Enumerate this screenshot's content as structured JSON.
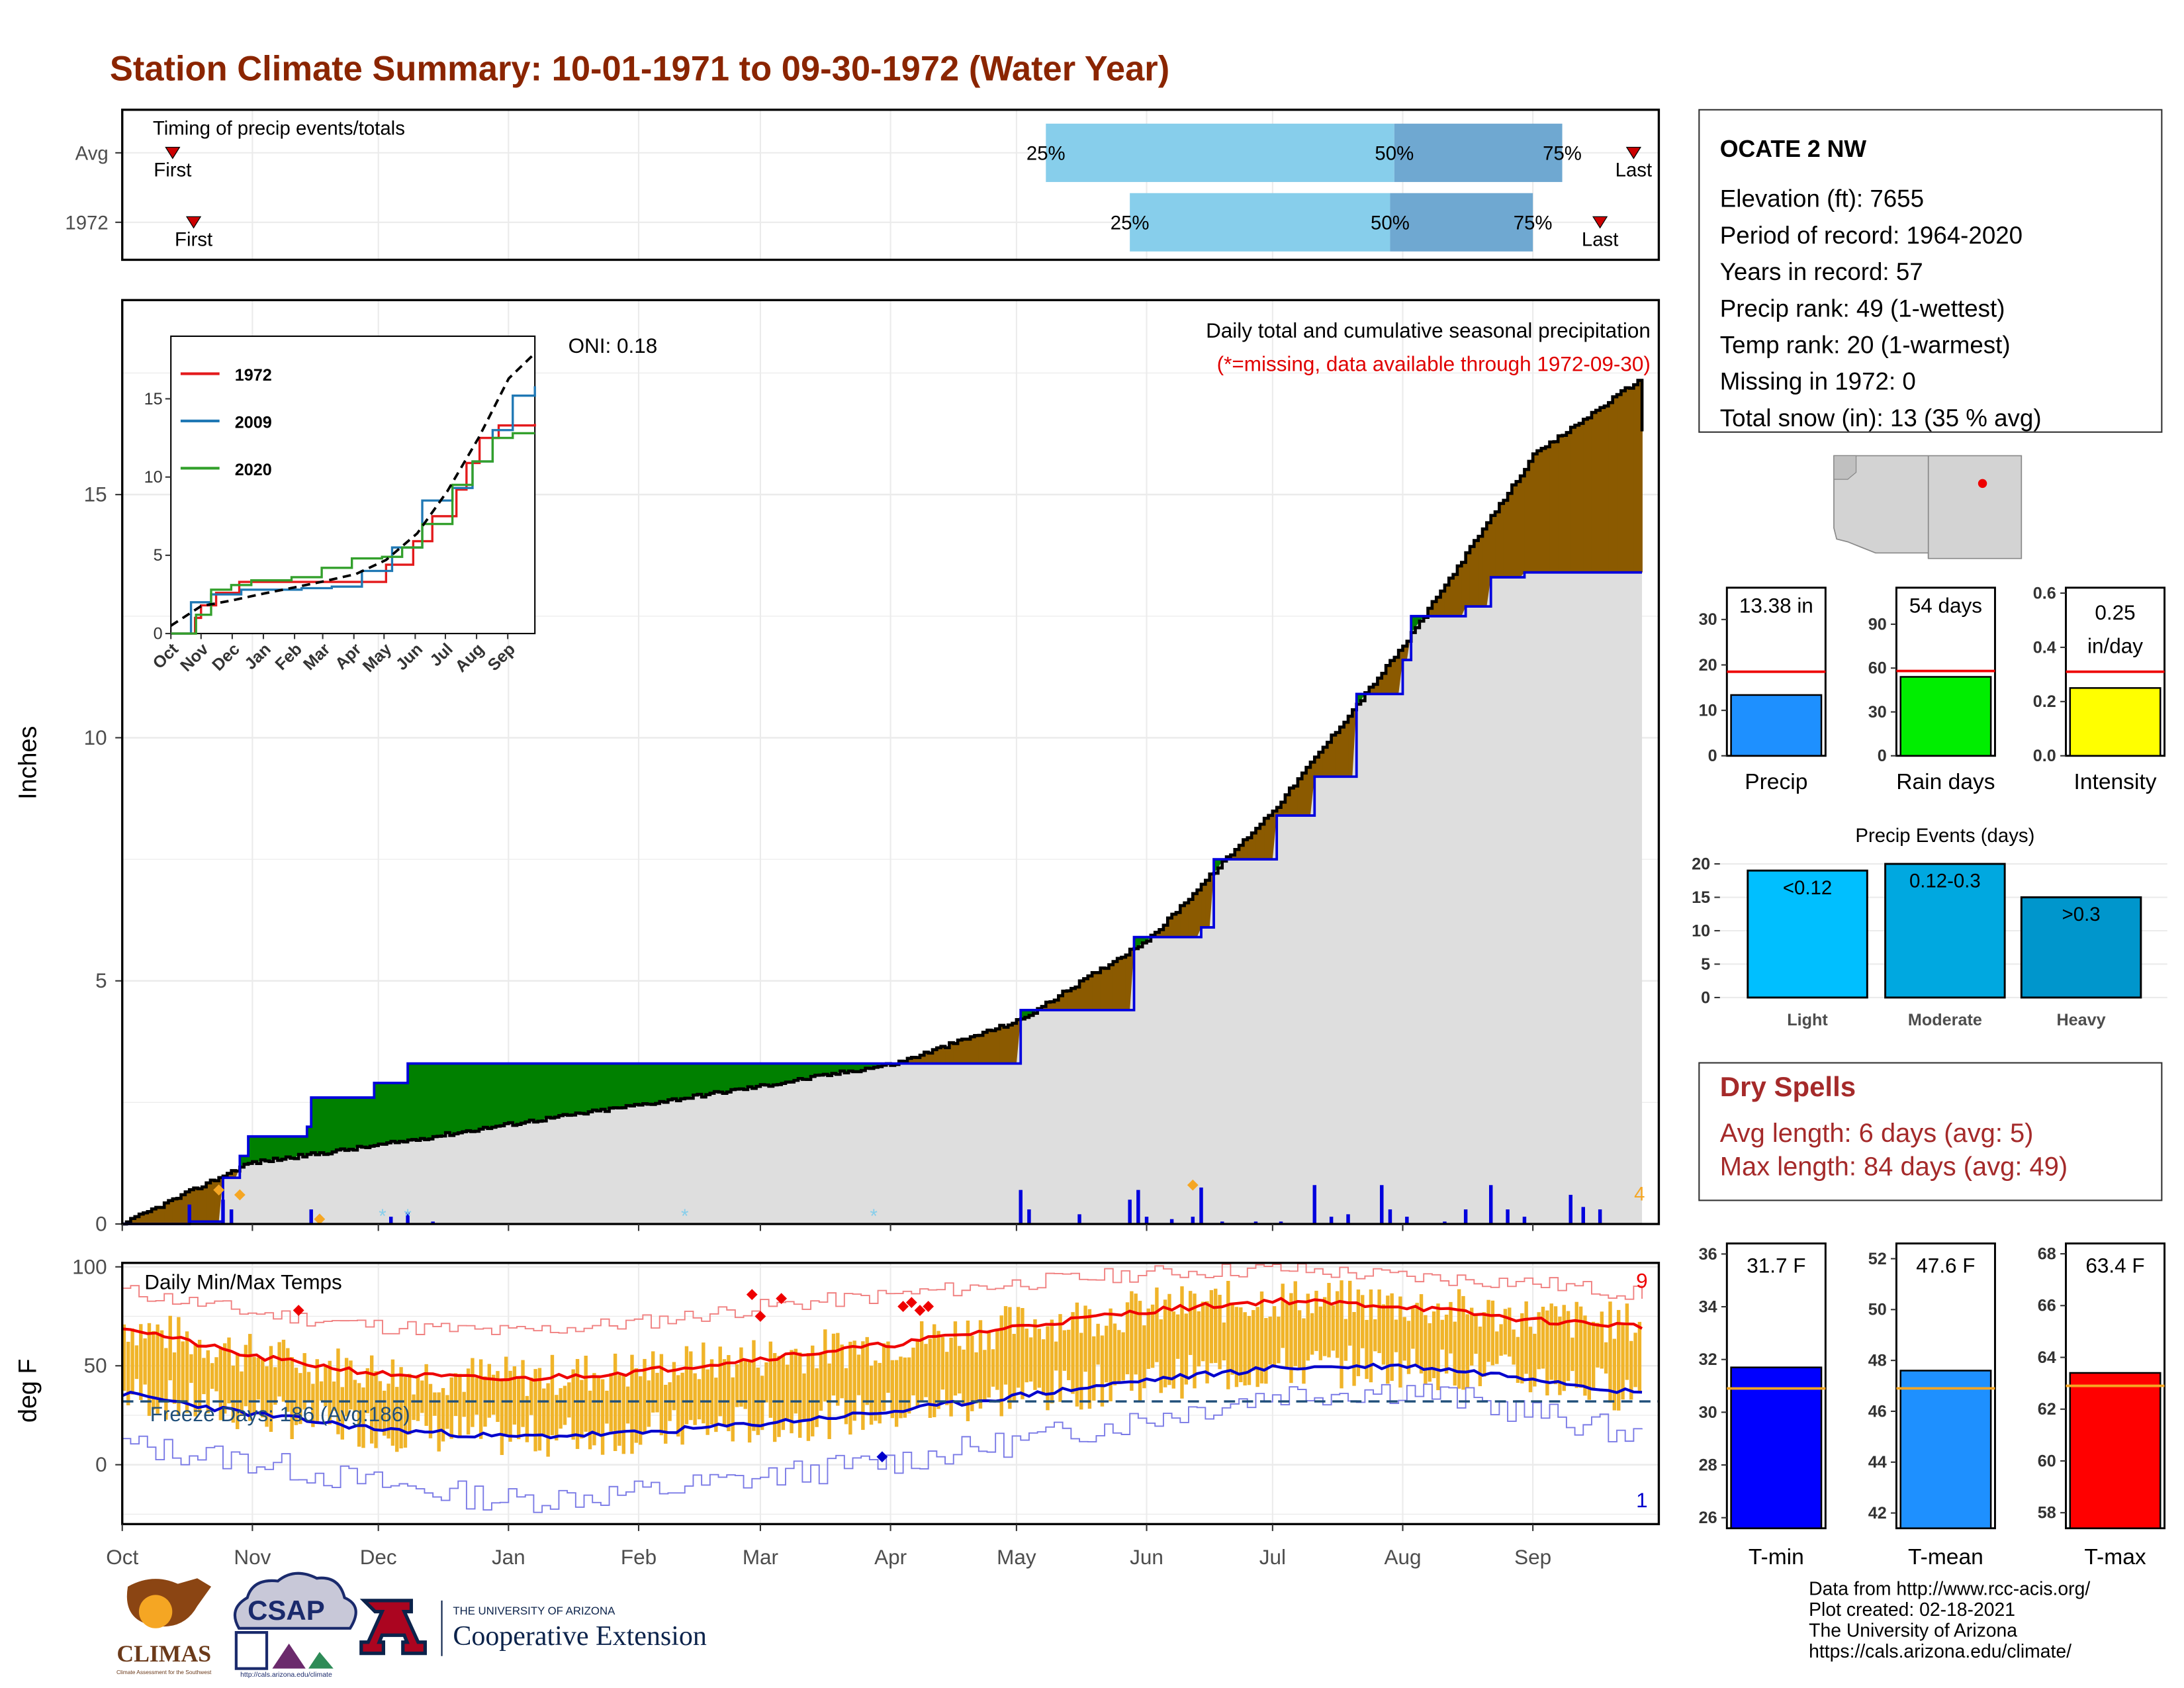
{
  "page": {
    "title": "Station Climate Summary: 10-01-1971 to 09-30-1972 (Water Year)",
    "title_color": "#8B2500",
    "footer_lines": [
      "Data from http://www.rcc-acis.org/",
      "Plot created: 02-18-2021",
      "The University of Arizona",
      "https://cals.arizona.edu/climate/"
    ],
    "logos": {
      "climas": "CLIMAS",
      "climas_sub": "Climate Assessment for the Southwest",
      "csap": "CSAP",
      "csap_url": "http://cals.arizona.edu/climate",
      "ua_line1": "THE UNIVERSITY OF ARIZONA",
      "ua_line2": "Cooperative Extension"
    }
  },
  "months": [
    "Oct",
    "Nov",
    "Dec",
    "Jan",
    "Feb",
    "Mar",
    "Apr",
    "May",
    "Jun",
    "Jul",
    "Aug",
    "Sep"
  ],
  "timing": {
    "title": "Timing of precip events/totals",
    "rows": [
      {
        "label": "Avg",
        "first_label": "First",
        "last_label": "Last",
        "first_day": 12,
        "last_day": 360,
        "p25_day": 220,
        "p50_day": 303,
        "p75_day": 343,
        "p25": "25%",
        "p50": "50%",
        "p75": "75%"
      },
      {
        "label": "1972",
        "first_label": "First",
        "last_label": "Last",
        "first_day": 17,
        "last_day": 352,
        "p25_day": 240,
        "p50_day": 302,
        "p75_day": 336,
        "p25": "25%",
        "p50": "50%",
        "p75": "75%"
      }
    ],
    "colors": {
      "light": "#87CEEB",
      "dark": "#6FA8D1",
      "marker": "#CC0000"
    }
  },
  "station": {
    "name": "OCATE 2 NW",
    "lines": [
      "Elevation (ft): 7655",
      "Period of record: 1964-2020",
      "Years in record: 57",
      "Precip rank: 49 (1-wettest)",
      "Temp rank: 20 (1-warmest)",
      "Missing in 1972: 0",
      "Total snow (in): 13 (35 % avg)"
    ]
  },
  "precip": {
    "ylabel": "Inches",
    "ylim": [
      0,
      19
    ],
    "yticks": [
      0,
      5,
      10,
      15
    ],
    "title": "Daily total and cumulative seasonal precipitation",
    "subtitle": "(*=missing, data available through 1972-09-30)",
    "oni": "ONI: 0.18",
    "snow_count": "4",
    "avg_cumulative": [
      [
        0,
        0
      ],
      [
        30,
        1.25
      ],
      [
        61,
        1.62
      ],
      [
        92,
        2.05
      ],
      [
        123,
        2.45
      ],
      [
        153,
        2.85
      ],
      [
        184,
        3.3
      ],
      [
        214,
        4.2
      ],
      [
        245,
        5.9
      ],
      [
        275,
        8.6
      ],
      [
        306,
        12.0
      ],
      [
        336,
        15.8
      ],
      [
        361,
        17.35
      ],
      [
        362,
        16.3
      ]
    ],
    "year_cumulative": [
      [
        0,
        0
      ],
      [
        16,
        0.05
      ],
      [
        24,
        0.95
      ],
      [
        28,
        1.4
      ],
      [
        30,
        1.8
      ],
      [
        44,
        2.0
      ],
      [
        45,
        2.6
      ],
      [
        60,
        2.9
      ],
      [
        68,
        3.3
      ],
      [
        100,
        3.3
      ],
      [
        120,
        3.3
      ],
      [
        160,
        3.3
      ],
      [
        184,
        3.3
      ],
      [
        213,
        3.3
      ],
      [
        214,
        4.4
      ],
      [
        240,
        4.4
      ],
      [
        241,
        5.9
      ],
      [
        257,
        6.1
      ],
      [
        260,
        7.5
      ],
      [
        275,
        8.4
      ],
      [
        284,
        9.2
      ],
      [
        294,
        10.9
      ],
      [
        305,
        11.6
      ],
      [
        307,
        12.5
      ],
      [
        320,
        12.7
      ],
      [
        326,
        13.3
      ],
      [
        334,
        13.4
      ],
      [
        362,
        13.4
      ]
    ],
    "daily_bars": [
      [
        16,
        0.4
      ],
      [
        24,
        0.5
      ],
      [
        26,
        0.3
      ],
      [
        45,
        0.3
      ],
      [
        64,
        0.15
      ],
      [
        68,
        0.25
      ],
      [
        74,
        0.05
      ],
      [
        214,
        0.7
      ],
      [
        216,
        0.3
      ],
      [
        228,
        0.2
      ],
      [
        240,
        0.5
      ],
      [
        242,
        0.7
      ],
      [
        244,
        0.15
      ],
      [
        250,
        0.1
      ],
      [
        255,
        0.15
      ],
      [
        257,
        0.75
      ],
      [
        262,
        0.05
      ],
      [
        270,
        0.05
      ],
      [
        276,
        0.05
      ],
      [
        284,
        0.8
      ],
      [
        288,
        0.15
      ],
      [
        292,
        0.2
      ],
      [
        300,
        0.8
      ],
      [
        302,
        0.3
      ],
      [
        306,
        0.15
      ],
      [
        315,
        0.05
      ],
      [
        320,
        0.3
      ],
      [
        326,
        0.8
      ],
      [
        330,
        0.3
      ],
      [
        334,
        0.15
      ],
      [
        345,
        0.6
      ],
      [
        348,
        0.35
      ],
      [
        352,
        0.3
      ]
    ],
    "colors": {
      "above": "#8B5A00",
      "below": "#008000",
      "fill": "#DEDEDE",
      "year_line": "#0000DD",
      "avg_line": "#000000"
    }
  },
  "inset": {
    "ylim": [
      0,
      19
    ],
    "yticks": [
      0,
      5,
      10,
      15
    ],
    "series": [
      {
        "name": "1972",
        "color": "#E31A1C",
        "points": [
          [
            0,
            0
          ],
          [
            24,
            1.0
          ],
          [
            30,
            1.8
          ],
          [
            45,
            2.6
          ],
          [
            68,
            3.3
          ],
          [
            120,
            3.3
          ],
          [
            184,
            3.3
          ],
          [
            214,
            4.4
          ],
          [
            241,
            5.9
          ],
          [
            260,
            7.5
          ],
          [
            284,
            9.2
          ],
          [
            294,
            10.9
          ],
          [
            307,
            12.5
          ],
          [
            326,
            13.3
          ],
          [
            362,
            13.4
          ]
        ]
      },
      {
        "name": "2009",
        "color": "#1F78B4",
        "points": [
          [
            0,
            0
          ],
          [
            20,
            2.0
          ],
          [
            40,
            2.5
          ],
          [
            70,
            2.8
          ],
          [
            100,
            2.8
          ],
          [
            130,
            2.9
          ],
          [
            160,
            3.0
          ],
          [
            190,
            4.0
          ],
          [
            220,
            5.5
          ],
          [
            250,
            8.5
          ],
          [
            280,
            9.3
          ],
          [
            300,
            11.0
          ],
          [
            320,
            13.0
          ],
          [
            340,
            15.2
          ],
          [
            362,
            15.8
          ]
        ]
      },
      {
        "name": "2020",
        "color": "#33A02C",
        "points": [
          [
            0,
            0
          ],
          [
            25,
            1.2
          ],
          [
            40,
            2.8
          ],
          [
            60,
            3.1
          ],
          [
            80,
            3.4
          ],
          [
            120,
            3.6
          ],
          [
            150,
            4.2
          ],
          [
            180,
            4.8
          ],
          [
            210,
            4.9
          ],
          [
            230,
            5.5
          ],
          [
            250,
            7.0
          ],
          [
            280,
            9.5
          ],
          [
            300,
            11.0
          ],
          [
            320,
            12.5
          ],
          [
            340,
            12.8
          ],
          [
            362,
            12.8
          ]
        ]
      }
    ]
  },
  "temps": {
    "title": "Daily Min/Max Temps",
    "ylabel": "deg F",
    "ylim": [
      -30,
      102
    ],
    "yticks": [
      0,
      50,
      100
    ],
    "freeze_text": "Freeze Days: 186 (Avg:186)",
    "freeze_line": 32,
    "record_high_count": "9",
    "record_low_count": "1",
    "avg_max": [
      [
        0,
        70
      ],
      [
        30,
        55
      ],
      [
        61,
        46
      ],
      [
        92,
        43
      ],
      [
        123,
        47
      ],
      [
        153,
        54
      ],
      [
        184,
        61
      ],
      [
        214,
        70
      ],
      [
        245,
        78
      ],
      [
        275,
        83
      ],
      [
        306,
        80
      ],
      [
        336,
        73
      ],
      [
        362,
        70
      ]
    ],
    "avg_min": [
      [
        0,
        36
      ],
      [
        30,
        26
      ],
      [
        61,
        18
      ],
      [
        92,
        14
      ],
      [
        123,
        16
      ],
      [
        153,
        21
      ],
      [
        184,
        27
      ],
      [
        214,
        35
      ],
      [
        245,
        43
      ],
      [
        275,
        49
      ],
      [
        306,
        50
      ],
      [
        336,
        44
      ],
      [
        362,
        36
      ]
    ],
    "rec_max": [
      [
        0,
        88
      ],
      [
        30,
        77
      ],
      [
        61,
        70
      ],
      [
        92,
        67
      ],
      [
        123,
        72
      ],
      [
        153,
        80
      ],
      [
        184,
        86
      ],
      [
        214,
        92
      ],
      [
        245,
        97
      ],
      [
        275,
        99
      ],
      [
        306,
        95
      ],
      [
        336,
        92
      ],
      [
        362,
        86
      ]
    ],
    "rec_min": [
      [
        0,
        10
      ],
      [
        30,
        2
      ],
      [
        61,
        -10
      ],
      [
        92,
        -18
      ],
      [
        123,
        -14
      ],
      [
        153,
        -6
      ],
      [
        184,
        2
      ],
      [
        214,
        12
      ],
      [
        245,
        24
      ],
      [
        275,
        36
      ],
      [
        306,
        38
      ],
      [
        336,
        26
      ],
      [
        362,
        14
      ]
    ],
    "colors": {
      "bars": "#F0B429",
      "avg_max": "#EE0000",
      "avg_min": "#0000CC",
      "rec_max": "#F08080",
      "rec_min": "#7A7AE6"
    }
  },
  "stats": {
    "precip": [
      {
        "label": "Precip",
        "value_text": "13.38 in",
        "value": 13.38,
        "avg": 18.5,
        "ylim": [
          0,
          37
        ],
        "yticks": [
          0,
          10,
          20,
          30
        ],
        "color": "#1E90FF"
      },
      {
        "label": "Rain days",
        "value_text": "54 days",
        "value": 54,
        "avg": 58,
        "ylim": [
          0,
          115
        ],
        "yticks": [
          0,
          30,
          60,
          90
        ],
        "color": "#00EE00"
      },
      {
        "label": "Intensity",
        "value_text": "0.25 in/day",
        "value_line1": "0.25",
        "value_line2": "in/day",
        "value": 0.25,
        "avg": 0.31,
        "ylim": [
          0,
          0.62
        ],
        "yticks": [
          0.0,
          0.2,
          0.4,
          0.6
        ],
        "color": "#FFFF00"
      }
    ],
    "events": {
      "title": "Precip Events (days)",
      "ylim": [
        0,
        21
      ],
      "yticks": [
        0,
        5,
        10,
        15,
        20
      ],
      "bars": [
        {
          "category": "Light",
          "label": "<0.12",
          "value": 19,
          "color": "#00BFFF"
        },
        {
          "category": "Moderate",
          "label": "0.12-0.3",
          "value": 20,
          "color": "#00A8E0"
        },
        {
          "category": "Heavy",
          "label": ">0.3",
          "value": 15,
          "color": "#0096CC"
        }
      ]
    },
    "dry_spells": {
      "title": "Dry Spells",
      "avg_length": "Avg length: 6 days (avg: 5)",
      "max_length": "Max length: 84 days (avg: 49)",
      "color": "#A52A2A"
    },
    "temps": [
      {
        "label": "T-min",
        "value_text": "31.7 F",
        "value": 31.7,
        "avg": 30.9,
        "ylim": [
          25.6,
          36.4
        ],
        "yticks": [
          26,
          28,
          30,
          32,
          34,
          36
        ],
        "color": "#0000FF"
      },
      {
        "label": "T-mean",
        "value_text": "47.6 F",
        "value": 47.6,
        "avg": 46.9,
        "ylim": [
          41.4,
          52.6
        ],
        "yticks": [
          42,
          44,
          46,
          48,
          50,
          52
        ],
        "color": "#1E90FF"
      },
      {
        "label": "T-max",
        "value_text": "63.4 F",
        "value": 63.4,
        "avg": 62.9,
        "ylim": [
          57.4,
          68.4
        ],
        "yticks": [
          58,
          60,
          62,
          64,
          66,
          68
        ],
        "color": "#FF0000"
      }
    ]
  }
}
